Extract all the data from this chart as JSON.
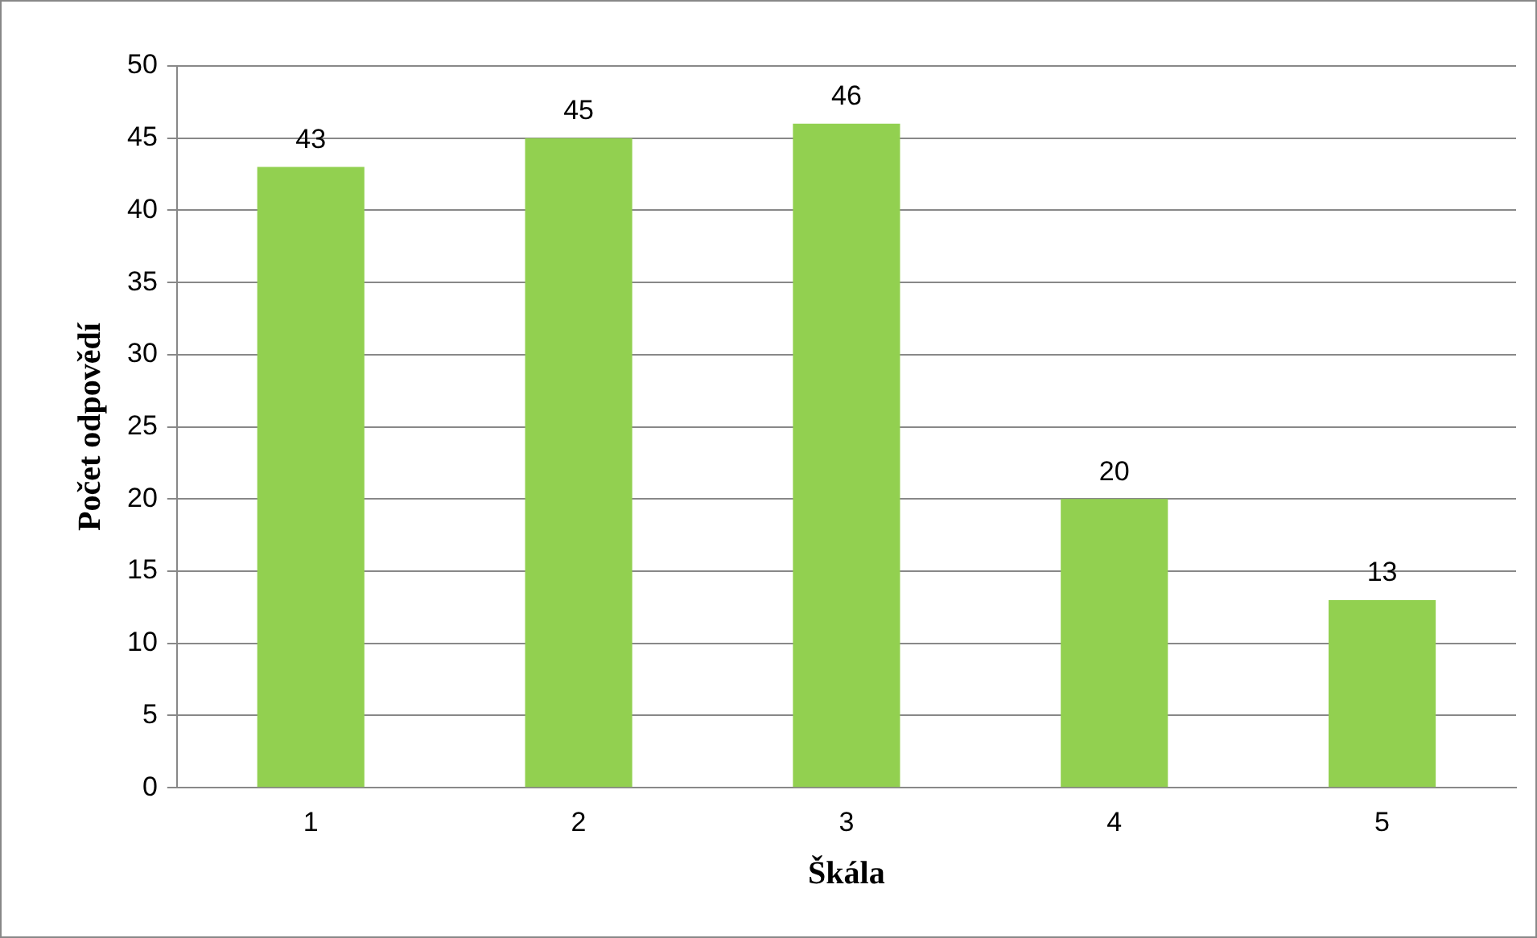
{
  "chart_data": {
    "type": "bar",
    "xlabel": "Škála",
    "ylabel": "Počet odpovědí",
    "categories": [
      "1",
      "2",
      "3",
      "4",
      "5"
    ],
    "values": [
      43,
      45,
      46,
      20,
      13
    ],
    "color": "#92d050",
    "ylim": [
      0,
      50
    ],
    "yticks": [
      0,
      5,
      10,
      15,
      20,
      25,
      30,
      35,
      40,
      45,
      50
    ],
    "grid": "y",
    "legend": false,
    "data_labels": true
  }
}
